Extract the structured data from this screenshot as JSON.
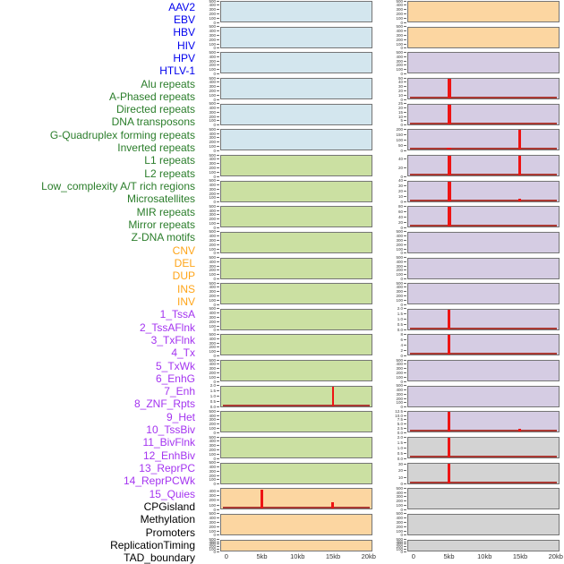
{
  "chart_data": {
    "type": "bar",
    "description": "Small-multiples density figure: 44 genomic features, two columns of 22 mini bar-panels each, counts vs position 0-20kb",
    "x_axis": {
      "tick_labels": [
        "0",
        "5kb",
        "10kb",
        "15kb",
        "20kb"
      ],
      "tick_kb": [
        0,
        5,
        10,
        15,
        20
      ],
      "range_kb": [
        0,
        20
      ]
    },
    "legend_position": "none",
    "grid": false,
    "groups": {
      "virus": {
        "label_color": "#0000ee",
        "bg": "#d3e6ee"
      },
      "repeat": {
        "label_color": "#2a7d2a",
        "bg": "#cbe0a2"
      },
      "sv": {
        "label_color": "#ffa519",
        "bg": "#fcd6a1"
      },
      "chromhmm": {
        "label_color": "#a434f0",
        "bg": "#d5cce3"
      },
      "other": {
        "label_color": "#000000",
        "bg": "#d3d3d3"
      }
    },
    "spike_color": "#ee1414",
    "baseline_color": "#ab3a34",
    "panels": [
      {
        "label": "AAV2",
        "group": "virus",
        "yticks": [
          "500",
          "400",
          "300",
          "200",
          "100",
          "0"
        ],
        "ymax": 500,
        "baseline": false,
        "spikes": []
      },
      {
        "label": "EBV",
        "group": "virus",
        "yticks": [
          "500",
          "400",
          "300",
          "200",
          "100",
          "0"
        ],
        "ymax": 500,
        "baseline": false,
        "spikes": []
      },
      {
        "label": "HBV",
        "group": "virus",
        "yticks": [
          "500",
          "400",
          "300",
          "200",
          "100",
          "0"
        ],
        "ymax": 500,
        "baseline": false,
        "spikes": []
      },
      {
        "label": "HIV",
        "group": "virus",
        "yticks": [
          "500",
          "400",
          "300",
          "200",
          "100",
          "0"
        ],
        "ymax": 500,
        "baseline": false,
        "spikes": []
      },
      {
        "label": "HPV",
        "group": "virus",
        "yticks": [
          "500",
          "400",
          "300",
          "200",
          "100",
          "0"
        ],
        "ymax": 500,
        "baseline": false,
        "spikes": []
      },
      {
        "label": "HTLV-1",
        "group": "virus",
        "yticks": [
          "500",
          "400",
          "300",
          "200",
          "100",
          "0"
        ],
        "ymax": 500,
        "baseline": false,
        "spikes": []
      },
      {
        "label": "Alu repeats",
        "group": "repeat",
        "yticks": [
          "500",
          "400",
          "300",
          "200",
          "100",
          "0"
        ],
        "ymax": 500,
        "baseline": false,
        "spikes": []
      },
      {
        "label": "A-Phased repeats",
        "group": "repeat",
        "yticks": [
          "500",
          "400",
          "300",
          "200",
          "100",
          "0"
        ],
        "ymax": 500,
        "baseline": false,
        "spikes": []
      },
      {
        "label": "Directed repeats",
        "group": "repeat",
        "yticks": [
          "500",
          "400",
          "300",
          "200",
          "100",
          "0"
        ],
        "ymax": 500,
        "baseline": false,
        "spikes": []
      },
      {
        "label": "DNA transposons",
        "group": "repeat",
        "yticks": [
          "500",
          "400",
          "300",
          "200",
          "100",
          "0"
        ],
        "ymax": 500,
        "baseline": false,
        "spikes": []
      },
      {
        "label": "G-Quadruplex forming repeats",
        "group": "repeat",
        "yticks": [
          "500",
          "400",
          "300",
          "200",
          "100",
          "0"
        ],
        "ymax": 500,
        "baseline": false,
        "spikes": []
      },
      {
        "label": "Inverted repeats",
        "group": "repeat",
        "yticks": [
          "500",
          "400",
          "300",
          "200",
          "100",
          "0"
        ],
        "ymax": 500,
        "baseline": false,
        "spikes": []
      },
      {
        "label": "L1 repeats",
        "group": "repeat",
        "yticks": [
          "500",
          "400",
          "300",
          "200",
          "100",
          "0"
        ],
        "ymax": 500,
        "baseline": false,
        "spikes": []
      },
      {
        "label": "L2 repeats",
        "group": "repeat",
        "yticks": [
          "500",
          "400",
          "300",
          "200",
          "100",
          "0"
        ],
        "ymax": 500,
        "baseline": false,
        "spikes": []
      },
      {
        "label": "Low_complexity A/T rich regions",
        "group": "repeat",
        "yticks": [
          "500",
          "400",
          "300",
          "200",
          "100",
          "0"
        ],
        "ymax": 500,
        "baseline": false,
        "spikes": []
      },
      {
        "label": "Microsatellites",
        "group": "repeat",
        "yticks": [
          "2.0",
          "1.5",
          "1.0",
          "0.5",
          "0.0"
        ],
        "ymax": 2.0,
        "baseline": true,
        "spikes": [
          {
            "x_kb": 15,
            "value": 2.0,
            "w": 2
          }
        ]
      },
      {
        "label": "MIR repeats",
        "group": "repeat",
        "yticks": [
          "500",
          "400",
          "300",
          "200",
          "100",
          "0"
        ],
        "ymax": 500,
        "baseline": false,
        "spikes": []
      },
      {
        "label": "Mirror repeats",
        "group": "repeat",
        "yticks": [
          "500",
          "400",
          "300",
          "200",
          "100",
          "0"
        ],
        "ymax": 500,
        "baseline": false,
        "spikes": []
      },
      {
        "label": "Z-DNA motifs",
        "group": "repeat",
        "yticks": [
          "500",
          "400",
          "300",
          "200",
          "100",
          "0"
        ],
        "ymax": 500,
        "baseline": false,
        "spikes": []
      },
      {
        "label": "CNV",
        "group": "sv",
        "yticks": [
          "400",
          "300",
          "200",
          "100",
          "0"
        ],
        "ymax": 460,
        "baseline": true,
        "spikes": [
          {
            "x_kb": 5,
            "value": 450,
            "w": 3
          },
          {
            "x_kb": 15,
            "value": 150,
            "w": 3
          }
        ]
      },
      {
        "label": "DEL",
        "group": "sv",
        "yticks": [
          "500",
          "400",
          "300",
          "200",
          "100",
          "0"
        ],
        "ymax": 500,
        "baseline": false,
        "spikes": []
      },
      {
        "label": "DUP",
        "group": "sv",
        "yticks": [
          "500",
          "400",
          "300",
          "200",
          "100",
          "0"
        ],
        "ymax": 500,
        "baseline": false,
        "spikes": []
      },
      {
        "label": "INS",
        "group": "sv",
        "yticks": [
          "500",
          "400",
          "300",
          "200",
          "100",
          "0"
        ],
        "ymax": 500,
        "baseline": false,
        "spikes": []
      },
      {
        "label": "INV",
        "group": "sv",
        "yticks": [
          "500",
          "400",
          "300",
          "200",
          "100",
          "0"
        ],
        "ymax": 500,
        "baseline": false,
        "spikes": []
      },
      {
        "label": "1_TssA",
        "group": "chromhmm",
        "yticks": [
          "500",
          "400",
          "300",
          "200",
          "100",
          "0"
        ],
        "ymax": 500,
        "baseline": false,
        "spikes": []
      },
      {
        "label": "2_TssAFlnk",
        "group": "chromhmm",
        "yticks": [
          "50",
          "40",
          "30",
          "20",
          "10",
          "0"
        ],
        "ymax": 50,
        "baseline": true,
        "spikes": [
          {
            "x_kb": 5,
            "value": 50,
            "w": 4
          }
        ]
      },
      {
        "label": "3_TxFlnk",
        "group": "chromhmm",
        "yticks": [
          "25",
          "20",
          "15",
          "10",
          "5",
          "0"
        ],
        "ymax": 25,
        "baseline": true,
        "spikes": [
          {
            "x_kb": 5,
            "value": 25,
            "w": 4
          }
        ]
      },
      {
        "label": "4_Tx",
        "group": "chromhmm",
        "yticks": [
          "200",
          "150",
          "100",
          "50",
          "0"
        ],
        "ymax": 200,
        "baseline": true,
        "spikes": [
          {
            "x_kb": 5,
            "value": 26,
            "w": 5
          },
          {
            "x_kb": 15,
            "value": 200,
            "w": 3
          }
        ]
      },
      {
        "label": "5_TxWk",
        "group": "chromhmm",
        "yticks": [
          "40",
          "20",
          "0"
        ],
        "ymax": 50,
        "baseline": true,
        "spikes": [
          {
            "x_kb": 5,
            "value": 50,
            "w": 4
          },
          {
            "x_kb": 15,
            "value": 50,
            "w": 3
          }
        ]
      },
      {
        "label": "6_EnhG",
        "group": "chromhmm",
        "yticks": [
          "40",
          "30",
          "20",
          "10",
          "0"
        ],
        "ymax": 40,
        "baseline": true,
        "spikes": [
          {
            "x_kb": 5,
            "value": 40,
            "w": 4
          },
          {
            "x_kb": 15,
            "value": 4,
            "w": 3
          }
        ]
      },
      {
        "label": "7_Enh",
        "group": "chromhmm",
        "yticks": [
          "80",
          "60",
          "40",
          "20",
          "0"
        ],
        "ymax": 80,
        "baseline": true,
        "spikes": [
          {
            "x_kb": 5,
            "value": 80,
            "w": 4
          }
        ]
      },
      {
        "label": "8_ZNF_Rpts",
        "group": "chromhmm",
        "yticks": [
          "500",
          "400",
          "300",
          "200",
          "100",
          "0"
        ],
        "ymax": 500,
        "baseline": false,
        "spikes": []
      },
      {
        "label": "9_Het",
        "group": "chromhmm",
        "yticks": [
          "500",
          "400",
          "300",
          "200",
          "100",
          "0"
        ],
        "ymax": 500,
        "baseline": false,
        "spikes": []
      },
      {
        "label": "10_TssBiv",
        "group": "chromhmm",
        "yticks": [
          "500",
          "400",
          "300",
          "200",
          "100",
          "0"
        ],
        "ymax": 500,
        "baseline": false,
        "spikes": []
      },
      {
        "label": "11_BivFlnk",
        "group": "chromhmm",
        "yticks": [
          "2.0",
          "1.5",
          "1.0",
          "0.5",
          "0.0"
        ],
        "ymax": 2.0,
        "baseline": true,
        "spikes": [
          {
            "x_kb": 5,
            "value": 2.0,
            "w": 3
          }
        ]
      },
      {
        "label": "12_EnhBiv",
        "group": "chromhmm",
        "yticks": [
          "8",
          "6",
          "4",
          "2",
          "0"
        ],
        "ymax": 8,
        "baseline": true,
        "spikes": [
          {
            "x_kb": 5,
            "value": 8,
            "w": 3
          }
        ]
      },
      {
        "label": "13_ReprPC",
        "group": "chromhmm",
        "yticks": [
          "500",
          "400",
          "300",
          "200",
          "100",
          "0"
        ],
        "ymax": 500,
        "baseline": false,
        "spikes": []
      },
      {
        "label": "14_ReprPCWk",
        "group": "chromhmm",
        "yticks": [
          "500",
          "400",
          "300",
          "200",
          "100",
          "0"
        ],
        "ymax": 500,
        "baseline": false,
        "spikes": []
      },
      {
        "label": "15_Quies",
        "group": "chromhmm",
        "yticks": [
          "12.5",
          "10.0",
          "7.5",
          "5.0",
          "2.5",
          "0.0"
        ],
        "ymax": 12.5,
        "baseline": true,
        "spikes": [
          {
            "x_kb": 5,
            "value": 12.5,
            "w": 3
          },
          {
            "x_kb": 15,
            "value": 2.2,
            "w": 3
          }
        ]
      },
      {
        "label": "CPGisland",
        "group": "other",
        "yticks": [
          "2.0",
          "1.5",
          "1.0",
          "0.5",
          "0.0"
        ],
        "ymax": 2.0,
        "baseline": true,
        "spikes": [
          {
            "x_kb": 5,
            "value": 2.0,
            "w": 3
          }
        ]
      },
      {
        "label": "Methylation",
        "group": "other",
        "yticks": [
          "30",
          "20",
          "10",
          "0"
        ],
        "ymax": 32,
        "baseline": true,
        "spikes": [
          {
            "x_kb": 5,
            "value": 32,
            "w": 3
          }
        ]
      },
      {
        "label": "Promoters",
        "group": "other",
        "yticks": [
          "500",
          "400",
          "300",
          "200",
          "100",
          "0"
        ],
        "ymax": 500,
        "baseline": false,
        "spikes": []
      },
      {
        "label": "ReplicationTiming",
        "group": "other",
        "yticks": [
          "500",
          "400",
          "300",
          "200",
          "100",
          "0"
        ],
        "ymax": 500,
        "baseline": false,
        "spikes": []
      },
      {
        "label": "TAD_boundary",
        "group": "other",
        "yticks": [
          "500",
          "400",
          "300",
          "200",
          "100",
          "0"
        ],
        "ymax": 500,
        "baseline": false,
        "spikes": []
      }
    ]
  }
}
